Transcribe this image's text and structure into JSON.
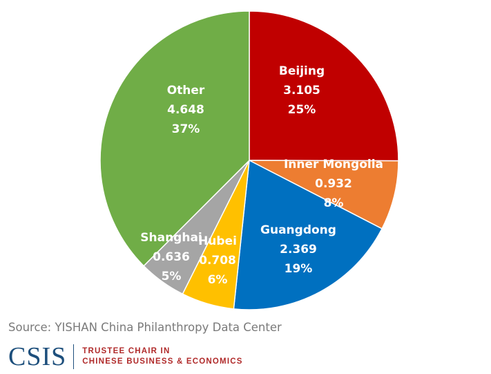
{
  "chart_data": {
    "type": "pie",
    "title": "",
    "slices": [
      {
        "label": "Beijing",
        "value": 3.105,
        "percent": "25%",
        "color": "#c00000"
      },
      {
        "label": "Inner Mongolia",
        "value": 0.932,
        "percent": "8%",
        "color": "#ed7d31"
      },
      {
        "label": "Guangdong",
        "value": 2.369,
        "percent": "19%",
        "color": "#0070c0"
      },
      {
        "label": "Hubei",
        "value": 0.708,
        "percent": "6%",
        "color": "#ffc000"
      },
      {
        "label": "Shanghai",
        "value": 0.636,
        "percent": "5%",
        "color": "#a5a5a5"
      },
      {
        "label": "Other",
        "value": 4.648,
        "percent": "37%",
        "color": "#70ad47"
      }
    ],
    "value_labels": [
      "3.105",
      "0.932",
      "2.369",
      "0.708",
      "0.636",
      "4.648"
    ],
    "legend": "none"
  },
  "source": "Source: YISHAN China Philanthropy Data Center",
  "logo": {
    "mark": "CSIS",
    "line1": "TRUSTEE CHAIR IN",
    "line2": "CHINESE BUSINESS & ECONOMICS"
  }
}
